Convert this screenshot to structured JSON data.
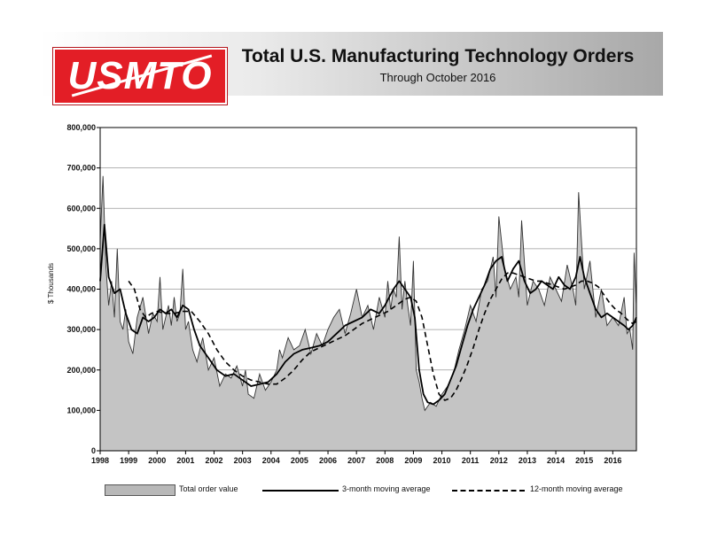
{
  "header": {
    "logo_text": "USMTO",
    "title": "Total U.S. Manufacturing Technology Orders",
    "subtitle": "Through October 2016"
  },
  "legend": {
    "bar_label": "Total order value",
    "ma3_label": "3-month moving average",
    "ma12_label": "12-month moving average"
  },
  "chart_data": {
    "type": "area",
    "ylabel": "$ Thousands",
    "ylim": [
      0,
      800000
    ],
    "yticks": [
      0,
      100000,
      200000,
      300000,
      400000,
      500000,
      600000,
      700000,
      800000
    ],
    "ytick_labels": [
      "0",
      "100,000",
      "200,000",
      "300,000",
      "400,000",
      "500,000",
      "600,000",
      "700,000",
      "800,000"
    ],
    "xlim": [
      1998,
      2016.83
    ],
    "xticks": [
      1998,
      1999,
      2000,
      2001,
      2002,
      2003,
      2004,
      2005,
      2006,
      2007,
      2008,
      2009,
      2010,
      2011,
      2012,
      2013,
      2014,
      2015,
      2016
    ],
    "grid": true,
    "series": [
      {
        "name": "Total order value",
        "style": "filled-area",
        "x": [
          1998.0,
          1998.1,
          1998.2,
          1998.3,
          1998.4,
          1998.5,
          1998.6,
          1998.7,
          1998.8,
          1998.9,
          1999.0,
          1999.15,
          1999.3,
          1999.5,
          1999.7,
          1999.85,
          2000.0,
          2000.1,
          2000.2,
          2000.3,
          2000.4,
          2000.5,
          2000.6,
          2000.7,
          2000.8,
          2000.9,
          2001.0,
          2001.1,
          2001.25,
          2001.4,
          2001.6,
          2001.8,
          2002.0,
          2002.2,
          2002.4,
          2002.6,
          2002.8,
          2003.0,
          2003.1,
          2003.2,
          2003.4,
          2003.6,
          2003.8,
          2004.0,
          2004.2,
          2004.3,
          2004.4,
          2004.6,
          2004.8,
          2005.0,
          2005.2,
          2005.4,
          2005.6,
          2005.8,
          2006.0,
          2006.2,
          2006.4,
          2006.6,
          2006.8,
          2007.0,
          2007.2,
          2007.4,
          2007.6,
          2007.8,
          2008.0,
          2008.1,
          2008.2,
          2008.3,
          2008.4,
          2008.5,
          2008.6,
          2008.7,
          2008.8,
          2008.9,
          2009.0,
          2009.1,
          2009.2,
          2009.3,
          2009.4,
          2009.6,
          2009.8,
          2010.0,
          2010.2,
          2010.4,
          2010.6,
          2010.8,
          2011.0,
          2011.2,
          2011.4,
          2011.6,
          2011.8,
          2011.9,
          2012.0,
          2012.2,
          2012.4,
          2012.6,
          2012.7,
          2012.8,
          2013.0,
          2013.2,
          2013.4,
          2013.6,
          2013.8,
          2014.0,
          2014.2,
          2014.4,
          2014.6,
          2014.7,
          2014.8,
          2015.0,
          2015.2,
          2015.4,
          2015.6,
          2015.8,
          2016.0,
          2016.2,
          2016.4,
          2016.5,
          2016.6,
          2016.7,
          2016.75,
          2016.83
        ],
        "values": [
          520000,
          680000,
          460000,
          360000,
          420000,
          330000,
          500000,
          320000,
          300000,
          350000,
          270000,
          240000,
          330000,
          380000,
          290000,
          340000,
          320000,
          430000,
          300000,
          330000,
          360000,
          310000,
          380000,
          320000,
          340000,
          450000,
          300000,
          320000,
          250000,
          220000,
          280000,
          200000,
          230000,
          160000,
          190000,
          180000,
          210000,
          160000,
          200000,
          140000,
          130000,
          190000,
          150000,
          170000,
          200000,
          250000,
          230000,
          280000,
          250000,
          260000,
          300000,
          240000,
          290000,
          260000,
          300000,
          330000,
          350000,
          290000,
          340000,
          400000,
          330000,
          360000,
          300000,
          380000,
          330000,
          420000,
          350000,
          400000,
          380000,
          530000,
          350000,
          420000,
          360000,
          310000,
          470000,
          200000,
          170000,
          130000,
          100000,
          120000,
          110000,
          140000,
          160000,
          190000,
          250000,
          300000,
          360000,
          320000,
          400000,
          420000,
          480000,
          380000,
          580000,
          450000,
          400000,
          430000,
          380000,
          570000,
          360000,
          420000,
          400000,
          360000,
          430000,
          400000,
          370000,
          460000,
          400000,
          360000,
          640000,
          400000,
          470000,
          330000,
          400000,
          310000,
          330000,
          310000,
          380000,
          290000,
          300000,
          250000,
          490000,
          360000
        ],
        "legend": "Total order value"
      },
      {
        "name": "3-month moving average",
        "style": "solid",
        "x": [
          1998.0,
          1998.15,
          1998.3,
          1998.5,
          1998.7,
          1998.9,
          1999.1,
          1999.3,
          1999.5,
          1999.7,
          1999.9,
          2000.1,
          2000.3,
          2000.5,
          2000.7,
          2000.9,
          2001.1,
          2001.3,
          2001.5,
          2001.7,
          2001.9,
          2002.1,
          2002.4,
          2002.7,
          2003.0,
          2003.3,
          2003.6,
          2003.9,
          2004.2,
          2004.5,
          2004.8,
          2005.1,
          2005.4,
          2005.7,
          2006.0,
          2006.3,
          2006.6,
          2006.9,
          2007.2,
          2007.5,
          2007.8,
          2008.0,
          2008.3,
          2008.5,
          2008.7,
          2008.9,
          2009.05,
          2009.2,
          2009.35,
          2009.5,
          2009.7,
          2009.9,
          2010.1,
          2010.3,
          2010.5,
          2010.7,
          2010.9,
          2011.1,
          2011.3,
          2011.5,
          2011.7,
          2011.9,
          2012.1,
          2012.3,
          2012.5,
          2012.7,
          2012.9,
          2013.1,
          2013.3,
          2013.5,
          2013.7,
          2013.9,
          2014.1,
          2014.3,
          2014.5,
          2014.7,
          2014.85,
          2015.0,
          2015.2,
          2015.4,
          2015.6,
          2015.8,
          2016.0,
          2016.2,
          2016.4,
          2016.55,
          2016.7,
          2016.83
        ],
        "values": [
          420000,
          560000,
          430000,
          390000,
          400000,
          340000,
          300000,
          290000,
          330000,
          320000,
          330000,
          350000,
          340000,
          350000,
          330000,
          360000,
          350000,
          300000,
          260000,
          240000,
          220000,
          200000,
          185000,
          190000,
          175000,
          160000,
          165000,
          170000,
          190000,
          220000,
          240000,
          250000,
          255000,
          260000,
          270000,
          290000,
          310000,
          320000,
          330000,
          350000,
          340000,
          360000,
          400000,
          420000,
          400000,
          380000,
          330000,
          200000,
          140000,
          120000,
          115000,
          125000,
          140000,
          175000,
          210000,
          260000,
          310000,
          350000,
          380000,
          410000,
          450000,
          470000,
          480000,
          420000,
          450000,
          470000,
          420000,
          390000,
          400000,
          420000,
          410000,
          400000,
          430000,
          410000,
          400000,
          430000,
          480000,
          430000,
          390000,
          350000,
          330000,
          340000,
          330000,
          320000,
          310000,
          300000,
          310000,
          330000
        ],
        "legend": "3-month moving average"
      },
      {
        "name": "12-month moving average",
        "style": "dashed",
        "x": [
          1999.0,
          1999.2,
          1999.4,
          1999.6,
          1999.8,
          2000.0,
          2000.3,
          2000.6,
          2000.9,
          2001.2,
          2001.5,
          2001.8,
          2002.1,
          2002.4,
          2002.7,
          2003.0,
          2003.3,
          2003.6,
          2003.9,
          2004.2,
          2004.5,
          2004.8,
          2005.1,
          2005.4,
          2005.7,
          2006.0,
          2006.3,
          2006.6,
          2006.9,
          2007.2,
          2007.5,
          2007.8,
          2008.1,
          2008.4,
          2008.7,
          2008.9,
          2009.1,
          2009.3,
          2009.5,
          2009.7,
          2009.9,
          2010.1,
          2010.3,
          2010.5,
          2010.7,
          2010.9,
          2011.1,
          2011.3,
          2011.5,
          2011.7,
          2011.9,
          2012.1,
          2012.3,
          2012.5,
          2012.7,
          2012.9,
          2013.1,
          2013.3,
          2013.5,
          2013.7,
          2013.9,
          2014.1,
          2014.3,
          2014.5,
          2014.7,
          2014.9,
          2015.1,
          2015.3,
          2015.5,
          2015.7,
          2015.9,
          2016.1,
          2016.3,
          2016.5,
          2016.7,
          2016.83
        ],
        "values": [
          420000,
          400000,
          350000,
          330000,
          340000,
          345000,
          340000,
          340000,
          345000,
          345000,
          320000,
          290000,
          250000,
          220000,
          200000,
          185000,
          175000,
          170000,
          165000,
          165000,
          180000,
          200000,
          225000,
          245000,
          255000,
          265000,
          275000,
          285000,
          300000,
          315000,
          325000,
          335000,
          345000,
          360000,
          375000,
          380000,
          370000,
          330000,
          260000,
          190000,
          140000,
          125000,
          130000,
          150000,
          180000,
          215000,
          255000,
          300000,
          340000,
          375000,
          400000,
          425000,
          440000,
          440000,
          435000,
          430000,
          425000,
          420000,
          420000,
          415000,
          410000,
          405000,
          400000,
          405000,
          410000,
          420000,
          420000,
          415000,
          405000,
          385000,
          365000,
          350000,
          340000,
          325000,
          315000,
          320000
        ],
        "legend": "12-month moving average"
      }
    ]
  }
}
